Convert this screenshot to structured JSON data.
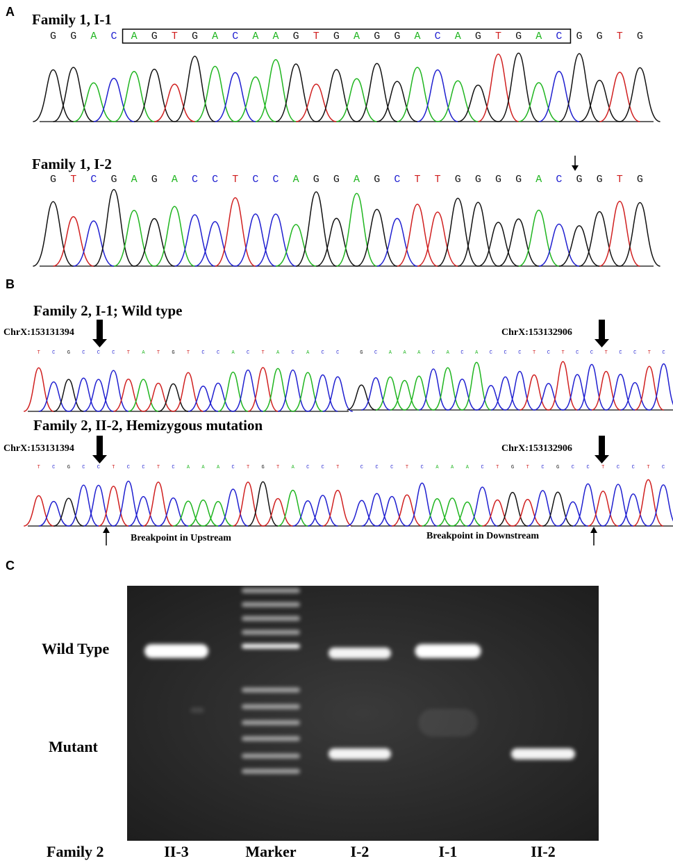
{
  "panel_a": {
    "label": "A",
    "traces": [
      {
        "title": "Family 1, I-1",
        "sequence": "GGACAGTGACAAGTGAGGACAGTGACGGTG"
      },
      {
        "title": "Family 1, I-2",
        "sequence": "GTCGAGACCTCCAGGAGCTTGGGGACGGTG"
      }
    ]
  },
  "panel_b": {
    "label": "B",
    "rows": [
      {
        "title": "Family 2, I-1; Wild type",
        "left": {
          "position": "ChrX:153131394",
          "sequence": "TCGCCCTATGTCCACTACACC"
        },
        "right": {
          "position": "ChrX:153132906",
          "sequence": "GCAAACACACCCTCTCCTCCTC"
        }
      },
      {
        "title": "Family 2, II-2, Hemizygous mutation",
        "left": {
          "position": "ChrX:153131394",
          "sequence": "TCGCCTCCTCAAACTGTACCT"
        },
        "right": {
          "position": "ChrX:153132906",
          "sequence": "CCCTCAAACTGTCGCCTCCTC"
        }
      }
    ],
    "breakpoints": [
      "Breakpoint in Upstream",
      "Breakpoint in Downstream"
    ]
  },
  "panel_c": {
    "label": "C",
    "row_labels": [
      "Wild Type",
      "Mutant"
    ],
    "family": "Family 2",
    "lanes": [
      "II-3",
      "Marker",
      "I-2",
      "I-1",
      "II-2"
    ]
  }
}
